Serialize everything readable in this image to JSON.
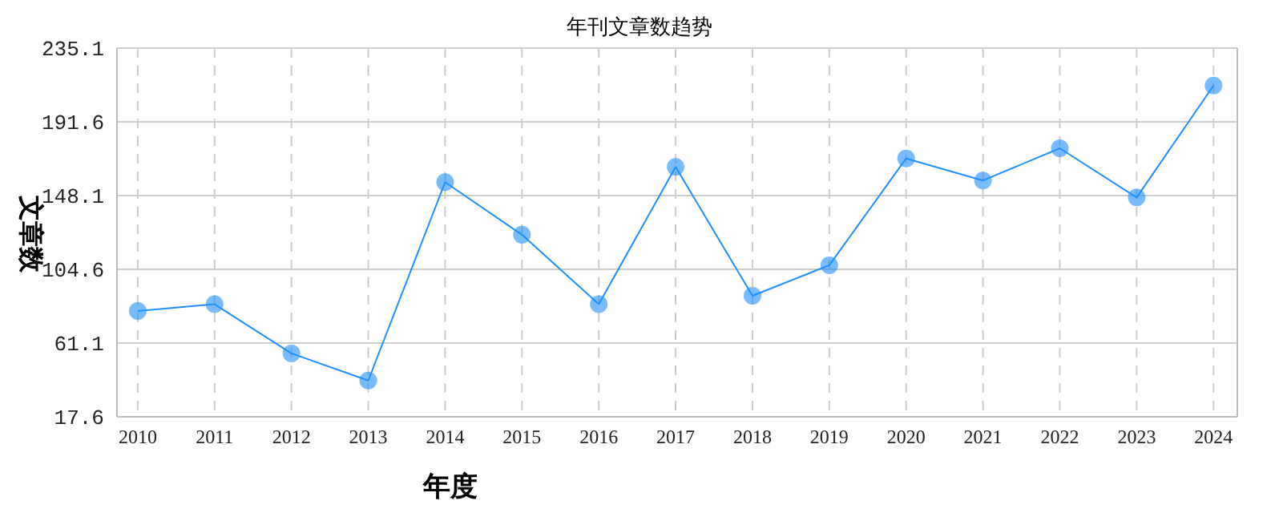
{
  "chart_data": {
    "type": "line",
    "title": "年刊文章数趋势",
    "xlabel": "年度",
    "ylabel": "文章数",
    "categories": [
      "2010",
      "2011",
      "2012",
      "2013",
      "2014",
      "2015",
      "2016",
      "2017",
      "2018",
      "2019",
      "2020",
      "2021",
      "2022",
      "2023",
      "2024"
    ],
    "series": [
      {
        "color": "#1e90ff",
        "values": [
          80,
          84,
          55,
          39,
          156,
          125,
          84,
          165,
          89,
          107,
          170,
          157,
          176,
          147,
          213
        ]
      }
    ],
    "ylim": [
      17.6,
      235.1
    ],
    "yticks": [
      17.6,
      61.1,
      104.6,
      148.1,
      191.6,
      235.1
    ],
    "grid": true,
    "marker": "circle",
    "legend": false
  }
}
